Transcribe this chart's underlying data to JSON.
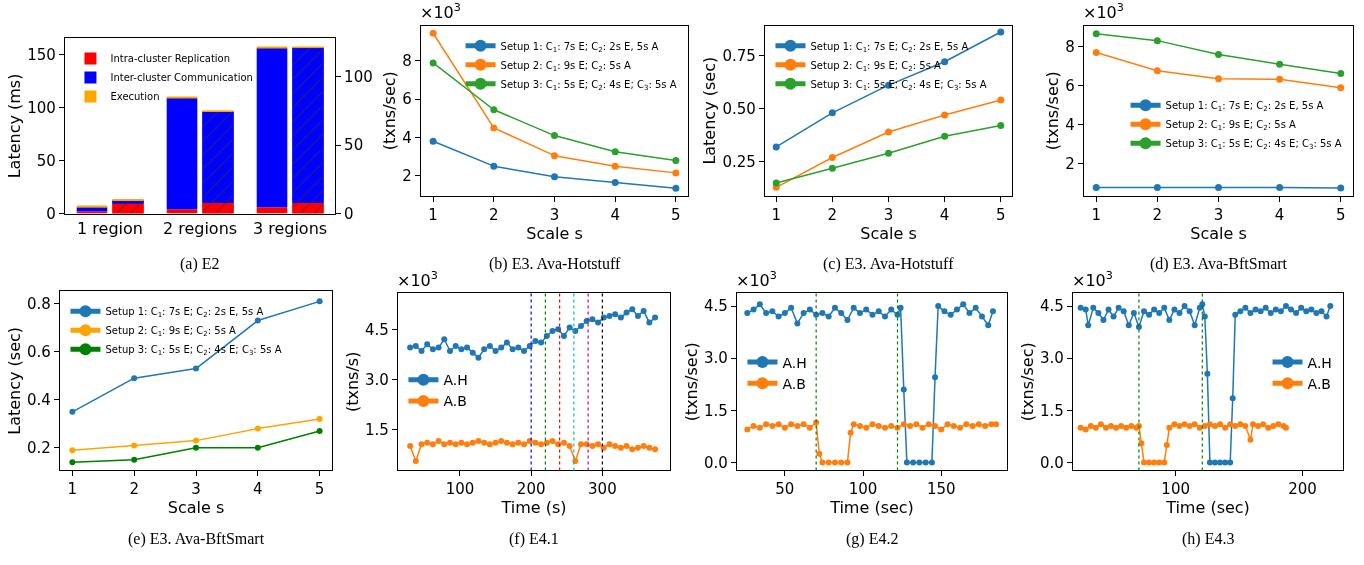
{
  "chart_data": [
    {
      "type": "bar",
      "stacked": true,
      "title": "(a) E2",
      "categories": [
        "1 region",
        "2 regions",
        "3 regions"
      ],
      "ylabel": "Latency (ms)",
      "ylim": [
        0,
        165
      ],
      "yticks": [
        0,
        50,
        100,
        150
      ],
      "y2lim": [
        0,
        128
      ],
      "y2ticks": [
        0,
        50,
        100
      ],
      "legend": "top left",
      "series": [
        {
          "name": "Intra-cluster Replication",
          "color": "#ff0000",
          "values": [
            2,
            4,
            6
          ]
        },
        {
          "name": "Inter-cluster Communication",
          "color": "#0000ff",
          "values": [
            4,
            105,
            150
          ]
        },
        {
          "name": "Execution",
          "color": "#ffa500",
          "values": [
            1,
            1,
            1
          ]
        },
        {
          "color": "#ff0000",
          "axis": "y2",
          "values": [
            7.6,
            8.1,
            8.1
          ]
        },
        {
          "color": "#0000ff",
          "axis": "y2",
          "values": [
            1.9,
            66.5,
            113.2
          ]
        },
        {
          "color": "#ffa500",
          "axis": "y2",
          "values": [
            0.7,
            0.4,
            0.4
          ]
        }
      ]
    },
    {
      "type": "line",
      "title": "(b) E3. Ava-Hotstuff",
      "x": [
        1,
        2,
        3,
        4,
        5
      ],
      "xlabel": "Scale s",
      "ylabel": "(txns/sec)",
      "xlim": [
        0.8,
        5.2
      ],
      "xticks": [
        1,
        2,
        3,
        4,
        5
      ],
      "ylim": [
        0.95,
        9.85
      ],
      "yticks": [
        2,
        4,
        6,
        8
      ],
      "marker": "circle",
      "legend": "top right",
      "annotations": [
        "×10$^{3}$"
      ],
      "series": [
        {
          "name": "Setup 1: C$_{1}$: 7s E; C$_{2}$: 2s E, 5s A",
          "color": "#1f77b4",
          "values": [
            3.8,
            2.5,
            1.95,
            1.65,
            1.35
          ]
        },
        {
          "name": "Setup 2: C$_{1}$: 9s E; C$_{2}$: 5s A",
          "color": "#ff7f0e",
          "values": [
            9.45,
            4.5,
            3.05,
            2.5,
            2.15
          ]
        },
        {
          "name": "Setup 3: C$_{1}$: 5s E; C$_{2}$: 4s E; C$_{3}$: 5s A",
          "color": "#2ca02c",
          "values": [
            7.9,
            5.45,
            4.1,
            3.25,
            2.8
          ]
        }
      ]
    },
    {
      "type": "line",
      "title": "(c) E3. Ava-Hotstuff",
      "x": [
        1,
        2,
        3,
        4,
        5
      ],
      "xlabel": "Scale s",
      "ylabel": "Latency (sec)",
      "xlim": [
        0.8,
        5.2
      ],
      "xticks": [
        1,
        2,
        3,
        4,
        5
      ],
      "ylim": [
        0.09,
        0.89
      ],
      "yticks": [
        {
          "value": 0.25,
          "label": "0.25"
        },
        {
          "value": 0.5,
          "label": "0.50"
        },
        {
          "value": 0.75,
          "label": "0.75"
        }
      ],
      "marker": "circle",
      "legend": "top left",
      "series": [
        {
          "name": "Setup 1: C$_{1}$: 7s E; C$_{2}$: 2s E, 5s A",
          "color": "#1f77b4",
          "values": [
            0.32,
            0.48,
            0.61,
            0.72,
            0.86
          ]
        },
        {
          "name": "Setup 2: C$_{1}$: 9s E; C$_{2}$: 5s A",
          "color": "#ff7f0e",
          "values": [
            0.13,
            0.27,
            0.39,
            0.47,
            0.54
          ]
        },
        {
          "name": "Setup 3: C$_{1}$: 5s E; C$_{2}$: 4s E; C$_{3}$: 5s A",
          "color": "#2ca02c",
          "values": [
            0.15,
            0.22,
            0.29,
            0.37,
            0.42
          ]
        }
      ]
    },
    {
      "type": "line",
      "title": "(d) E3. Ava-BftSmart",
      "x": [
        1,
        2,
        3,
        4,
        5
      ],
      "xlabel": "Scale s",
      "ylabel": "(txns/sec)",
      "xlim": [
        0.8,
        5.2
      ],
      "xticks": [
        1,
        2,
        3,
        4,
        5
      ],
      "ylim": [
        0.37,
        9.08
      ],
      "yticks": [
        2,
        4,
        6,
        8
      ],
      "marker": "circle",
      "legend": "right",
      "annotations": [
        "×10$^{3}$"
      ],
      "series": [
        {
          "name": "Setup 1: C$_{1}$: 7s E; C$_{2}$: 2s E, 5s A",
          "color": "#1f77b4",
          "values": [
            0.8,
            0.8,
            0.8,
            0.8,
            0.77
          ]
        },
        {
          "name": "Setup 2: C$_{1}$: 9s E; C$_{2}$: 5s A",
          "color": "#ff7f0e",
          "values": [
            7.7,
            6.77,
            6.36,
            6.33,
            5.9
          ]
        },
        {
          "name": "Setup 3: C$_{1}$: 5s E; C$_{2}$: 4s E; C$_{3}$: 5s A",
          "color": "#2ca02c",
          "values": [
            8.66,
            8.31,
            7.6,
            7.1,
            6.63
          ]
        }
      ]
    },
    {
      "type": "line",
      "title": "(e) E3. Ava-BftSmart",
      "x": [
        1,
        2,
        3,
        4,
        5
      ],
      "xlabel": "Scale s",
      "ylabel": "Latency (sec)",
      "xlim": [
        0.8,
        5.2
      ],
      "xticks": [
        1,
        2,
        3,
        4,
        5
      ],
      "ylim": [
        0.106,
        0.852
      ],
      "yticks": [
        0.2,
        0.4,
        0.6,
        0.8
      ],
      "marker": "circle",
      "legend": "top left",
      "series": [
        {
          "name": "Setup 1: C$_{1}$: 7s E; C$_{2}$: 2s E, 5s A",
          "color": "#1f77b4",
          "values": [
            0.35,
            0.49,
            0.53,
            0.73,
            0.81
          ]
        },
        {
          "name": "Setup 2: C$_{1}$: 9s E; C$_{2}$: 5s A",
          "color": "#ffa500",
          "values": [
            0.19,
            0.21,
            0.23,
            0.28,
            0.32
          ]
        },
        {
          "name": "Setup 3: C$_{1}$: 5s E; C$_{2}$: 4s E; C$_{3}$: 5s A",
          "color": "#008000",
          "values": [
            0.14,
            0.15,
            0.2,
            0.2,
            0.27
          ]
        }
      ]
    },
    {
      "type": "line",
      "title": "(f) E4.1",
      "xlabel": "Time (s)",
      "ylabel": "(txns/s)",
      "xlim": [
        13,
        395
      ],
      "xticks": [
        100,
        200,
        300
      ],
      "ylim": [
        0.27,
        5.58
      ],
      "yticks": [
        1.5,
        {
          "value": 3,
          "label": "3.0"
        },
        4.5
      ],
      "marker": "circle",
      "legend": "left",
      "annotations": [
        "×10$^{3}$"
      ],
      "ref_lines": [
        {
          "axis": "x",
          "value": 200,
          "color": "#0000ff",
          "line_style": "dotted"
        },
        {
          "axis": "x",
          "value": 220,
          "color": "#008000",
          "line_style": "dotted"
        },
        {
          "axis": "x",
          "value": 240,
          "color": "#ff0000",
          "line_style": "dotted"
        },
        {
          "axis": "x",
          "value": 260,
          "color": "#00bfbf",
          "line_style": "dotted"
        },
        {
          "axis": "x",
          "value": 280,
          "color": "#bf00bf",
          "line_style": "dotted"
        },
        {
          "axis": "x",
          "value": 300,
          "color": "#000000",
          "line_style": "dotted"
        }
      ],
      "series": [
        {
          "name": "A.H",
          "color": "#1f77b4",
          "x": [
            30,
            38,
            46,
            54,
            62,
            70,
            78,
            86,
            94,
            102,
            110,
            118,
            126,
            134,
            142,
            150,
            158,
            166,
            174,
            182,
            190,
            198,
            206,
            214,
            222,
            230,
            238,
            246,
            254,
            262,
            270,
            278,
            286,
            294,
            302,
            310,
            318,
            326,
            334,
            342,
            350,
            358,
            366,
            374
          ],
          "values": [
            3.95,
            4.0,
            3.85,
            4.05,
            3.9,
            3.95,
            4.2,
            3.85,
            4.0,
            3.9,
            3.95,
            3.8,
            3.65,
            3.9,
            4.0,
            3.85,
            3.95,
            4.1,
            3.9,
            3.95,
            3.85,
            4.0,
            4.15,
            4.1,
            4.3,
            4.45,
            4.5,
            4.3,
            4.55,
            4.45,
            4.6,
            4.75,
            4.8,
            4.7,
            4.85,
            4.9,
            4.95,
            4.85,
            5.0,
            5.1,
            4.9,
            5.05,
            4.7,
            4.85
          ]
        },
        {
          "name": "A.B",
          "color": "#ff7f0e",
          "x": [
            30,
            38,
            46,
            54,
            62,
            70,
            78,
            86,
            94,
            102,
            110,
            118,
            126,
            134,
            142,
            150,
            158,
            166,
            174,
            182,
            190,
            198,
            206,
            214,
            222,
            230,
            238,
            246,
            254,
            262,
            270,
            278,
            286,
            294,
            302,
            310,
            318,
            326,
            334,
            342,
            350,
            358,
            366,
            374
          ],
          "values": [
            1.0,
            0.55,
            1.05,
            1.1,
            1.05,
            1.15,
            1.05,
            1.1,
            1.05,
            1.1,
            1.05,
            1.1,
            1.15,
            1.1,
            1.05,
            1.1,
            1.15,
            1.1,
            1.05,
            1.1,
            1.05,
            1.15,
            1.1,
            1.05,
            1.1,
            1.15,
            1.05,
            1.1,
            1.0,
            0.55,
            1.05,
            1.05,
            1.0,
            1.05,
            0.95,
            1.05,
            1.0,
            0.95,
            1.0,
            0.9,
            0.95,
            1.0,
            0.95,
            0.9
          ]
        }
      ]
    },
    {
      "type": "line",
      "title": "(g) E4.2",
      "xlabel": "Time (sec)",
      "ylabel": "(txns/sec)",
      "xlim": [
        19.4,
        192
      ],
      "xticks": [
        50,
        100,
        150
      ],
      "ylim": [
        -0.23,
        4.87
      ],
      "yticks": [
        {
          "value": 0,
          "label": "0.0"
        },
        1.5,
        {
          "value": 3,
          "label": "3.0"
        },
        4.5
      ],
      "marker": "circle",
      "legend": "left",
      "annotations": [
        "×10$^{3}$"
      ],
      "ref_lines": [
        {
          "axis": "x",
          "value": 70,
          "color": "#008000",
          "line_style": "dotted"
        },
        {
          "axis": "x",
          "value": 122,
          "color": "#008000",
          "line_style": "dotted"
        }
      ],
      "series": [
        {
          "name": "A.H",
          "color": "#1f77b4",
          "x": [
            26,
            30,
            34,
            38,
            42,
            46,
            50,
            54,
            58,
            62,
            66,
            70,
            74,
            78,
            82,
            86,
            90,
            94,
            98,
            102,
            106,
            110,
            114,
            118,
            122,
            124,
            126,
            128,
            132,
            136,
            140,
            144,
            146,
            148,
            152,
            156,
            160,
            164,
            168,
            172,
            176,
            180,
            183
          ],
          "values": [
            4.3,
            4.4,
            4.55,
            4.3,
            4.35,
            4.2,
            4.3,
            4.45,
            4.0,
            4.3,
            4.4,
            4.25,
            4.3,
            4.2,
            4.45,
            4.3,
            4.1,
            4.45,
            4.3,
            4.4,
            4.25,
            4.35,
            4.2,
            4.4,
            4.25,
            4.45,
            2.1,
            0,
            0,
            0,
            0,
            0,
            2.45,
            4.5,
            4.35,
            4.25,
            4.4,
            4.55,
            4.3,
            4.45,
            4.2,
            3.95,
            4.35
          ]
        },
        {
          "name": "A.B",
          "color": "#ff7f0e",
          "x": [
            26,
            30,
            34,
            38,
            42,
            46,
            50,
            54,
            58,
            62,
            66,
            70,
            72,
            74,
            78,
            82,
            86,
            90,
            92,
            94,
            98,
            102,
            106,
            110,
            114,
            118,
            122,
            126,
            130,
            134,
            138,
            142,
            146,
            150,
            154,
            158,
            162,
            166,
            170,
            174,
            178,
            182,
            185
          ],
          "values": [
            0.95,
            1.05,
            1.0,
            1.1,
            1.05,
            1.1,
            1.0,
            1.1,
            1.05,
            1.1,
            1.0,
            1.15,
            0.25,
            0,
            0,
            0,
            0,
            0,
            0.85,
            1.1,
            1.05,
            1.0,
            1.1,
            1.05,
            1.0,
            1.05,
            1.0,
            1.1,
            1.05,
            1.1,
            1.0,
            1.1,
            1.05,
            0.95,
            1.1,
            1.05,
            1.0,
            1.1,
            1.05,
            1.1,
            1.05,
            1.1,
            1.1
          ]
        }
      ]
    },
    {
      "type": "line",
      "title": "(h) E4.3",
      "xlabel": "Time (sec)",
      "ylabel": "(txns/sec)",
      "xlim": [
        19,
        232
      ],
      "xticks": [
        100,
        200
      ],
      "ylim": [
        -0.23,
        4.87
      ],
      "yticks": [
        {
          "value": 0,
          "label": "0.0"
        },
        1.5,
        {
          "value": 3,
          "label": "3.0"
        },
        4.5
      ],
      "marker": "circle",
      "legend": "right",
      "annotations": [
        "×10$^{3}$"
      ],
      "ref_lines": [
        {
          "axis": "x",
          "value": 71,
          "color": "#008000",
          "line_style": "dotted"
        },
        {
          "axis": "x",
          "value": 121,
          "color": "#008000",
          "line_style": "dotted"
        }
      ],
      "series": [
        {
          "name": "A.H",
          "color": "#1f77b4",
          "x": [
            25,
            29,
            31,
            35,
            39,
            43,
            47,
            51,
            55,
            59,
            63,
            67,
            71,
            75,
            79,
            83,
            87,
            91,
            95,
            99,
            103,
            107,
            111,
            115,
            119,
            121,
            123,
            125,
            127,
            131,
            135,
            139,
            143,
            145,
            147,
            151,
            155,
            159,
            163,
            167,
            171,
            175,
            179,
            183,
            187,
            191,
            195,
            199,
            203,
            207,
            211,
            215,
            219,
            222
          ],
          "values": [
            4.45,
            4.4,
            3.95,
            4.45,
            4.3,
            4.1,
            4.4,
            4.2,
            4.45,
            4.35,
            3.95,
            4.3,
            3.9,
            4.35,
            4.25,
            4.4,
            4.3,
            4.45,
            4.1,
            4.4,
            4.3,
            4.5,
            4.35,
            3.95,
            4.45,
            4.55,
            4.2,
            2.55,
            0,
            0,
            0,
            0,
            0,
            1.85,
            4.25,
            4.35,
            4.45,
            4.3,
            4.4,
            4.35,
            4.45,
            4.3,
            4.4,
            4.35,
            4.5,
            4.4,
            4.3,
            4.45,
            4.35,
            4.4,
            4.3,
            4.35,
            4.2,
            4.5
          ]
        },
        {
          "name": "A.B",
          "color": "#ff7f0e",
          "x": [
            25,
            29,
            33,
            37,
            41,
            45,
            49,
            53,
            57,
            61,
            65,
            69,
            71,
            73,
            75,
            79,
            83,
            87,
            91,
            93,
            95,
            99,
            103,
            107,
            111,
            115,
            119,
            123,
            127,
            131,
            135,
            139,
            143,
            147,
            151,
            155,
            159,
            161,
            165,
            169,
            173,
            177,
            181,
            185,
            187
          ],
          "values": [
            1.0,
            0.95,
            1.05,
            1.0,
            1.1,
            1.0,
            1.05,
            1.0,
            1.05,
            1.0,
            1.05,
            1.0,
            1.05,
            0.55,
            0,
            0,
            0,
            0,
            0,
            0.5,
            1.0,
            1.1,
            1.05,
            1.1,
            1.05,
            1.1,
            1.0,
            1.05,
            1.1,
            1.05,
            1.1,
            1.0,
            1.1,
            1.05,
            1.1,
            1.05,
            0.65,
            1.1,
            1.05,
            1.1,
            1.0,
            1.05,
            1.1,
            1.05,
            1.0
          ]
        }
      ]
    }
  ]
}
